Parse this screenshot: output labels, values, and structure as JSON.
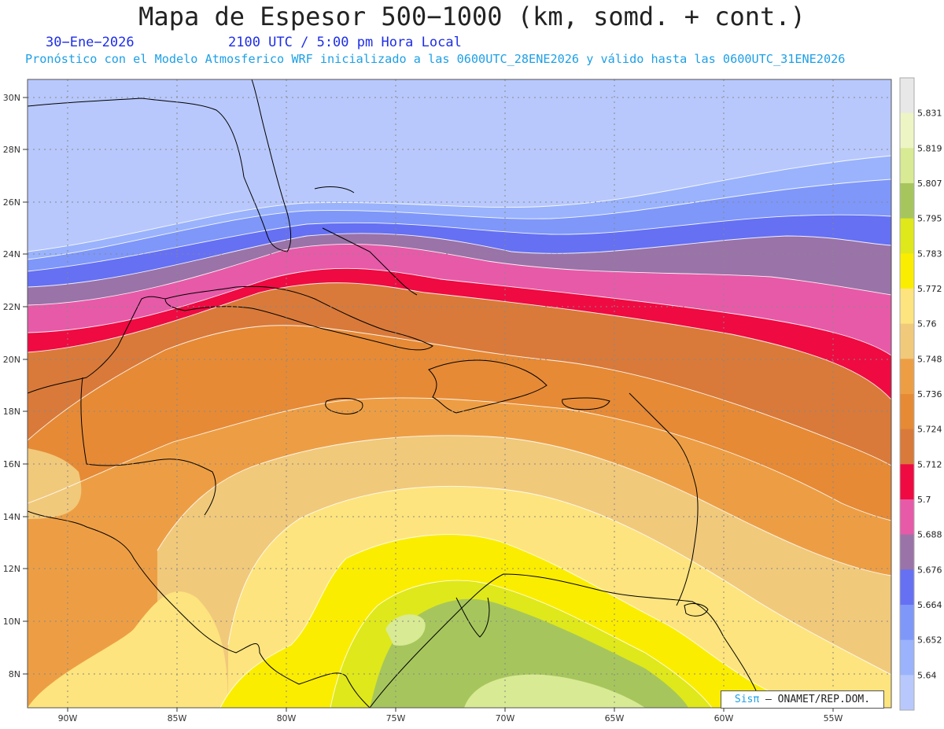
{
  "title": "Mapa de Espesor 500−1000 (km, somd. + cont.)",
  "date": "30−Ene−2026",
  "time": "2100 UTC / 5:00 pm Hora Local",
  "subtitle": "Pronóstico con el Modelo Atmosferico WRF inicializado a las 0600UTC_28ENE2026 y válido hasta las  0600UTC_31ENE2026",
  "credit": {
    "sis": "Sisπ",
    "rest": "– ONAMET/REP.DOM."
  },
  "lat_labels": [
    "30N",
    "28N",
    "26N",
    "24N",
    "22N",
    "20N",
    "18N",
    "16N",
    "14N",
    "12N",
    "10N",
    "8N"
  ],
  "lon_labels": [
    "90W",
    "85W",
    "80W",
    "75W",
    "70W",
    "65W",
    "60W",
    "55W"
  ],
  "colorbar": {
    "labels": [
      "5.64",
      "5.652",
      "5.664",
      "5.676",
      "5.688",
      "5.7",
      "5.712",
      "5.724",
      "5.736",
      "5.748",
      "5.76",
      "5.772",
      "5.783",
      "5.795",
      "5.807",
      "5.819",
      "5.831"
    ],
    "colors": [
      "#b8c8fc",
      "#9ab3fc",
      "#7f97f9",
      "#6570f3",
      "#9a73a8",
      "#e75aa8",
      "#ef0a42",
      "#d97a3a",
      "#e68a36",
      "#ed9e44",
      "#f1c97b",
      "#fde47e",
      "#fbed00",
      "#dfe81a",
      "#a6c65d",
      "#d8ea93",
      "#eef5c4",
      "#e8e8e8"
    ]
  },
  "chart_data": {
    "type": "contour-map",
    "field": "Espesor 500-1000",
    "unit": "km",
    "levels": [
      5.64,
      5.652,
      5.664,
      5.676,
      5.688,
      5.7,
      5.712,
      5.724,
      5.736,
      5.748,
      5.76,
      5.772,
      5.783,
      5.795,
      5.807,
      5.819,
      5.831
    ],
    "lon_range": [
      -92,
      -53
    ],
    "lat_range": [
      6.8,
      30.5
    ]
  }
}
